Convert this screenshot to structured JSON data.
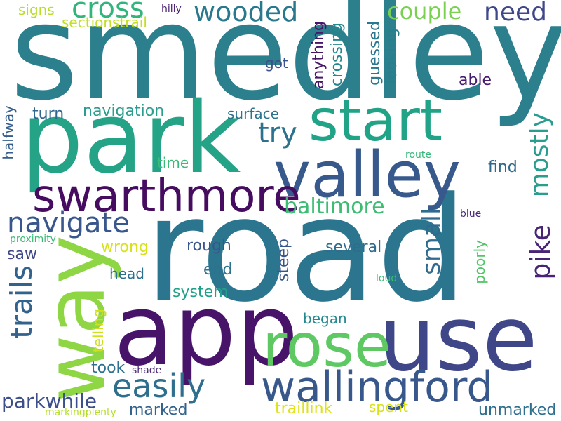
{
  "words": [
    {
      "text": "smedley",
      "color": "#2c7f8c"
    },
    {
      "text": "road",
      "color": "#2b768e"
    },
    {
      "text": "park",
      "color": "#24a387"
    },
    {
      "text": "app",
      "color": "#471469"
    },
    {
      "text": "use",
      "color": "#3f4788"
    },
    {
      "text": "way",
      "color": "#8fd644"
    },
    {
      "text": "start",
      "color": "#20a386"
    },
    {
      "text": "valley",
      "color": "#38598c"
    },
    {
      "text": "swarthmore",
      "color": "#460c5f"
    },
    {
      "text": "rose",
      "color": "#5ec962"
    },
    {
      "text": "wallingford",
      "color": "#38588c"
    },
    {
      "text": "easily",
      "color": "#2e6f8e"
    },
    {
      "text": "cross",
      "color": "#31b57b"
    },
    {
      "text": "wooded",
      "color": "#2a788e"
    },
    {
      "text": "couple",
      "color": "#7ad151"
    },
    {
      "text": "need",
      "color": "#3f4889"
    },
    {
      "text": "navigate",
      "color": "#39578c"
    },
    {
      "text": "try",
      "color": "#2c718e"
    },
    {
      "text": "baltimore",
      "color": "#3dbc74"
    },
    {
      "text": "mostly",
      "color": "#2a9d8e"
    },
    {
      "text": "pike",
      "color": "#482475"
    },
    {
      "text": "trails",
      "color": "#33638d"
    },
    {
      "text": "small",
      "color": "#2f6b8e"
    },
    {
      "text": "parkwhile",
      "color": "#3c4f8a"
    },
    {
      "text": "navigation",
      "color": "#2a9d8e"
    },
    {
      "text": "turn",
      "color": "#31678e"
    },
    {
      "text": "surface",
      "color": "#2c738e"
    },
    {
      "text": "got",
      "color": "#3b528b"
    },
    {
      "text": "anything",
      "color": "#471669"
    },
    {
      "text": "crossing",
      "color": "#24878e"
    },
    {
      "text": "guessed",
      "color": "#2a778e"
    },
    {
      "text": "looking",
      "color": "#277f8e"
    },
    {
      "text": "able",
      "color": "#481d6f"
    },
    {
      "text": "find",
      "color": "#31688e"
    },
    {
      "text": "signs",
      "color": "#b8de29"
    },
    {
      "text": "sectionstrail",
      "color": "#c2df23"
    },
    {
      "text": "hilly",
      "color": "#4b2474"
    },
    {
      "text": "halfway",
      "color": "#355e8d"
    },
    {
      "text": "time",
      "color": "#3bbb75"
    },
    {
      "text": "route",
      "color": "#35b779"
    },
    {
      "text": "blue",
      "color": "#482878"
    },
    {
      "text": "proximity",
      "color": "#3aba76"
    },
    {
      "text": "saw",
      "color": "#3f4788"
    },
    {
      "text": "wrong",
      "color": "#d8e219"
    },
    {
      "text": "rough",
      "color": "#39568c"
    },
    {
      "text": "several",
      "color": "#2f6c8e"
    },
    {
      "text": "end",
      "color": "#2c718e"
    },
    {
      "text": "steep",
      "color": "#39568c"
    },
    {
      "text": "poorly",
      "color": "#52c569"
    },
    {
      "text": "loud",
      "color": "#3bbb75"
    },
    {
      "text": "head",
      "color": "#2d708e"
    },
    {
      "text": "system",
      "color": "#1fa088"
    },
    {
      "text": "telling",
      "color": "#d0e11c"
    },
    {
      "text": "began",
      "color": "#23898e"
    },
    {
      "text": "took",
      "color": "#2d718e"
    },
    {
      "text": "shade",
      "color": "#482475"
    },
    {
      "text": "markingplenty",
      "color": "#b5de2b"
    },
    {
      "text": "marked",
      "color": "#33638d"
    },
    {
      "text": "traillink",
      "color": "#dde318"
    },
    {
      "text": "spent",
      "color": "#d8e219"
    },
    {
      "text": "unmarked",
      "color": "#2e6f8e"
    }
  ]
}
